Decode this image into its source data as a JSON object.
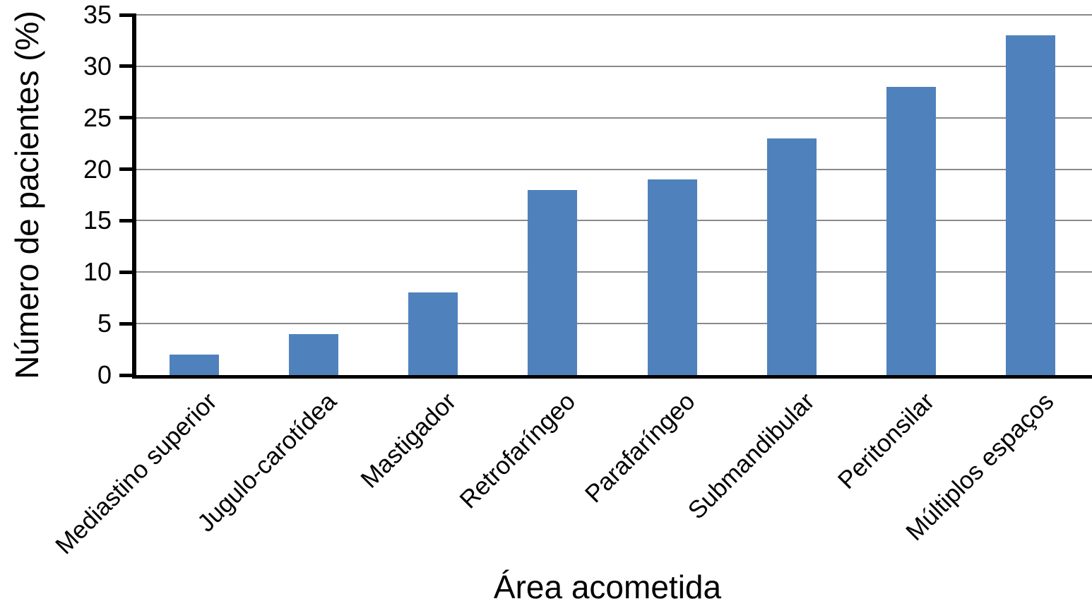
{
  "chart_data": {
    "type": "bar",
    "title": "",
    "xlabel": "Área acometida",
    "ylabel": "Número de pacientes (%)",
    "categories": [
      "Mediastino superior",
      "Jugulo-carotídea",
      "Mastigador",
      "Retrofaríngeo",
      "Parafaríngeo",
      "Submandibular",
      "Peritonsilar",
      "Múltiplos espaços"
    ],
    "values": [
      2,
      4,
      8,
      18,
      19,
      23,
      28,
      33
    ],
    "ylim": [
      0,
      35
    ],
    "yticks": [
      0,
      5,
      10,
      15,
      20,
      25,
      30,
      35
    ],
    "grid": "horizontal-only",
    "legend_position": "none",
    "x_label_rotation_deg": 45,
    "bar_color": "#4F81BD",
    "gridline_color": "#8a8a8a",
    "axis_color": "#000000",
    "text_color": "#000000",
    "background_color": "#ffffff"
  }
}
